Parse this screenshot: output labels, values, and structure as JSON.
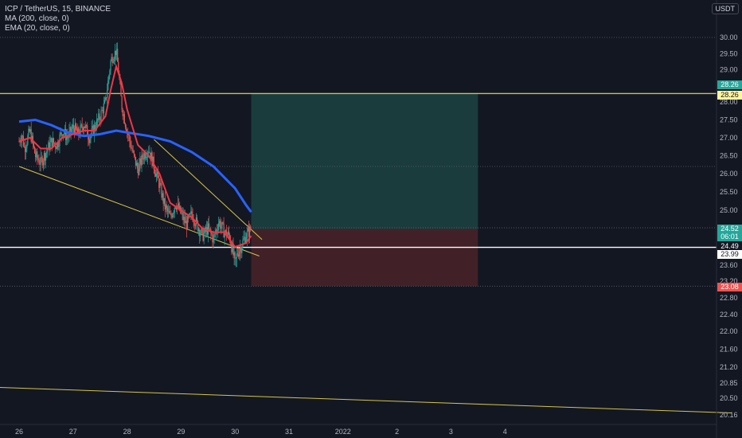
{
  "legend": {
    "symbol": "ICP / TetherUS, 15, BINANCE",
    "ma": "MA (200, close, 0)",
    "ema": "EMA (20, close, 0)"
  },
  "currency": "USDT",
  "chart_data": {
    "type": "candlestick",
    "pair": "ICP / TetherUS",
    "interval": "15",
    "exchange": "BINANCE",
    "y_axis_ticks": [
      "30.00",
      "29.50",
      "29.00",
      "28.50",
      "28.00",
      "27.50",
      "27.00",
      "26.50",
      "26.00",
      "25.50",
      "25.00",
      "24.50",
      "24.00",
      "23.60",
      "23.20",
      "22.80",
      "22.40",
      "22.00",
      "21.60",
      "21.20",
      "20.85",
      "20.50",
      "20.16"
    ],
    "x_axis_ticks": [
      "26",
      "27",
      "28",
      "29",
      "30",
      "31",
      "2022",
      "2",
      "3",
      "4"
    ],
    "price_labels": [
      {
        "value": "28.26",
        "kind": "target",
        "color": "#26a69a"
      },
      {
        "value": "28.26",
        "kind": "horizontal-line",
        "color": "#fff59d"
      },
      {
        "value": "24.52",
        "kind": "last-price",
        "color": "#26a69a"
      },
      {
        "value": "06:01",
        "kind": "countdown",
        "color": "#26a69a"
      },
      {
        "value": "24.49",
        "kind": "entry",
        "color": "#131722"
      },
      {
        "value": "23.99",
        "kind": "horizontal-line",
        "color": "#ffffff"
      },
      {
        "value": "23.08",
        "kind": "stop",
        "color": "#ef5350"
      }
    ],
    "price_path": [
      [
        0,
        26.9
      ],
      [
        0.05,
        27.1
      ],
      [
        0.1,
        26.7
      ],
      [
        0.2,
        27.2
      ],
      [
        0.3,
        26.5
      ],
      [
        0.4,
        26.3
      ],
      [
        0.5,
        26.6
      ],
      [
        0.6,
        26.9
      ],
      [
        0.7,
        26.8
      ],
      [
        0.8,
        27.2
      ],
      [
        0.9,
        27.0
      ],
      [
        1.0,
        27.3
      ],
      [
        1.1,
        27.1
      ],
      [
        1.2,
        27.4
      ],
      [
        1.3,
        27.0
      ],
      [
        1.4,
        27.3
      ],
      [
        1.5,
        27.6
      ],
      [
        1.6,
        28.0
      ],
      [
        1.7,
        29.3
      ],
      [
        1.8,
        29.6
      ],
      [
        1.85,
        28.8
      ],
      [
        1.9,
        27.9
      ],
      [
        2.0,
        27.2
      ],
      [
        2.1,
        26.6
      ],
      [
        2.2,
        26.1
      ],
      [
        2.3,
        26.5
      ],
      [
        2.4,
        26.7
      ],
      [
        2.5,
        26.2
      ],
      [
        2.6,
        25.7
      ],
      [
        2.7,
        25.1
      ],
      [
        2.8,
        24.8
      ],
      [
        2.9,
        25.2
      ],
      [
        3.0,
        24.9
      ],
      [
        3.1,
        24.6
      ],
      [
        3.2,
        24.9
      ],
      [
        3.3,
        24.6
      ],
      [
        3.4,
        24.3
      ],
      [
        3.5,
        24.5
      ],
      [
        3.6,
        24.2
      ],
      [
        3.7,
        24.7
      ],
      [
        3.8,
        24.4
      ],
      [
        3.9,
        24.3
      ],
      [
        4.0,
        23.6
      ],
      [
        4.05,
        23.9
      ],
      [
        4.1,
        24.0
      ],
      [
        4.2,
        24.3
      ],
      [
        4.3,
        24.5
      ]
    ],
    "ema20_path": [
      [
        0,
        26.9
      ],
      [
        0.2,
        27.0
      ],
      [
        0.4,
        26.7
      ],
      [
        0.6,
        26.7
      ],
      [
        0.8,
        27.0
      ],
      [
        1.0,
        27.1
      ],
      [
        1.2,
        27.2
      ],
      [
        1.4,
        27.2
      ],
      [
        1.6,
        27.6
      ],
      [
        1.7,
        28.4
      ],
      [
        1.8,
        29.1
      ],
      [
        1.9,
        28.6
      ],
      [
        2.0,
        27.8
      ],
      [
        2.2,
        26.8
      ],
      [
        2.4,
        26.5
      ],
      [
        2.6,
        26.0
      ],
      [
        2.8,
        25.2
      ],
      [
        3.0,
        25.0
      ],
      [
        3.2,
        24.8
      ],
      [
        3.4,
        24.5
      ],
      [
        3.6,
        24.4
      ],
      [
        3.8,
        24.4
      ],
      [
        4.0,
        24.0
      ],
      [
        4.2,
        24.1
      ],
      [
        4.3,
        24.3
      ]
    ],
    "ma200_path": [
      [
        0,
        27.45
      ],
      [
        0.3,
        27.5
      ],
      [
        0.6,
        27.35
      ],
      [
        0.9,
        27.15
      ],
      [
        1.2,
        27.05
      ],
      [
        1.5,
        27.1
      ],
      [
        1.8,
        27.2
      ],
      [
        2.0,
        27.15
      ],
      [
        2.4,
        27.05
      ],
      [
        2.8,
        26.9
      ],
      [
        3.2,
        26.6
      ],
      [
        3.6,
        26.2
      ],
      [
        4.0,
        25.6
      ],
      [
        4.2,
        25.15
      ],
      [
        4.3,
        24.95
      ]
    ],
    "position": {
      "type": "long",
      "entry": 24.49,
      "target": 28.26,
      "stop": 23.08,
      "start_x": 4.3,
      "end_x": 8.5
    },
    "trendlines": [
      {
        "from": [
          0,
          26.2
        ],
        "to": [
          4.45,
          23.8
        ],
        "color": "#d4c44a"
      },
      {
        "from": [
          2.5,
          26.95
        ],
        "to": [
          4.5,
          24.2
        ],
        "color": "#d4c44a"
      },
      {
        "from": [
          -0.4,
          20.75
        ],
        "to": [
          13.2,
          20.2
        ],
        "color": "#d4c44a"
      }
    ],
    "horizontal_lines": [
      {
        "value": 28.26,
        "color": "#c8c44a"
      },
      {
        "value": 23.99,
        "color": "#ffffff"
      }
    ],
    "dotted_levels": [
      30.0,
      26.2,
      24.52,
      23.08
    ]
  }
}
